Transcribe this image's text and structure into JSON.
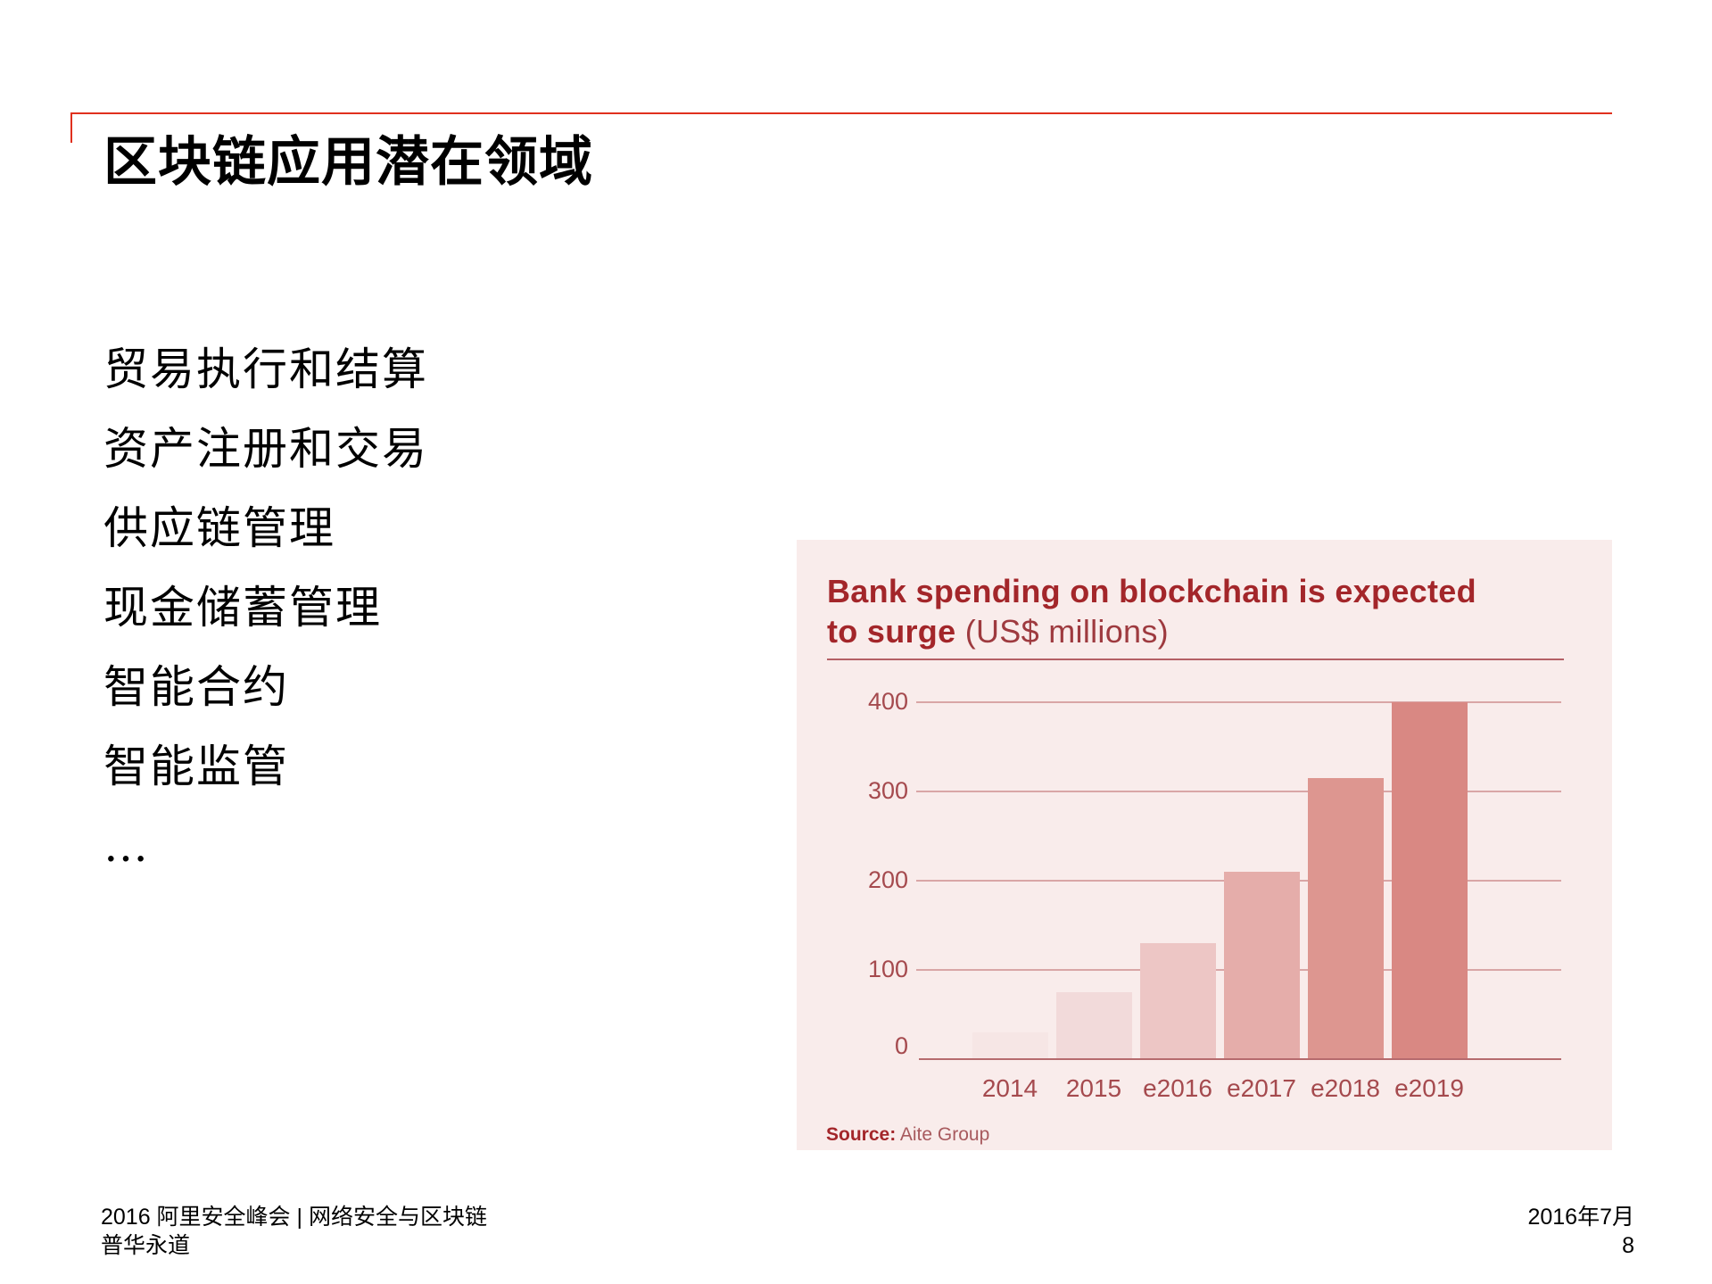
{
  "slide": {
    "title": "区块链应用潜在领域",
    "bullets": [
      "贸易执行和结算",
      "资产注册和交易",
      "供应链管理",
      "现金储蓄管理",
      "智能合约",
      "智能监管",
      "…"
    ],
    "footer_left_line1": "2016 阿里安全峰会 | 网络安全与区块链",
    "footer_left_line2": "普华永道",
    "footer_date": "2016年7月",
    "page_number": "8",
    "accent_color": "#E0301E"
  },
  "chart_labels": {
    "title_bold_line1": "Bank spending on blockchain is expected",
    "title_bold_line2": "to surge",
    "title_unit": " (US$ millions)",
    "source_label": "Source:",
    "source_value": " Aite Group",
    "y_ticks": [
      "400",
      "300",
      "200",
      "100",
      "0"
    ],
    "x_ticks": [
      "2014",
      "2015",
      "e2016",
      "e2017",
      "e2018",
      "e2019"
    ]
  },
  "chart_data": {
    "type": "bar",
    "title": "Bank spending on blockchain is expected to surge (US$ millions)",
    "categories": [
      "2014",
      "2015",
      "e2016",
      "e2017",
      "e2018",
      "e2019"
    ],
    "values": [
      30,
      75,
      130,
      210,
      315,
      400
    ],
    "xlabel": "",
    "ylabel": "US$ millions",
    "ylim": [
      0,
      400
    ],
    "yticks": [
      0,
      100,
      200,
      300,
      400
    ],
    "grid": true,
    "legend": null,
    "source": "Source: Aite Group",
    "bar_colors": [
      "#F6E6E5",
      "#F2DADA",
      "#EDC6C5",
      "#E5ADAA",
      "#DD9690",
      "#D98883"
    ],
    "background": "#F9ECEB",
    "text_color": "#A3262A"
  }
}
